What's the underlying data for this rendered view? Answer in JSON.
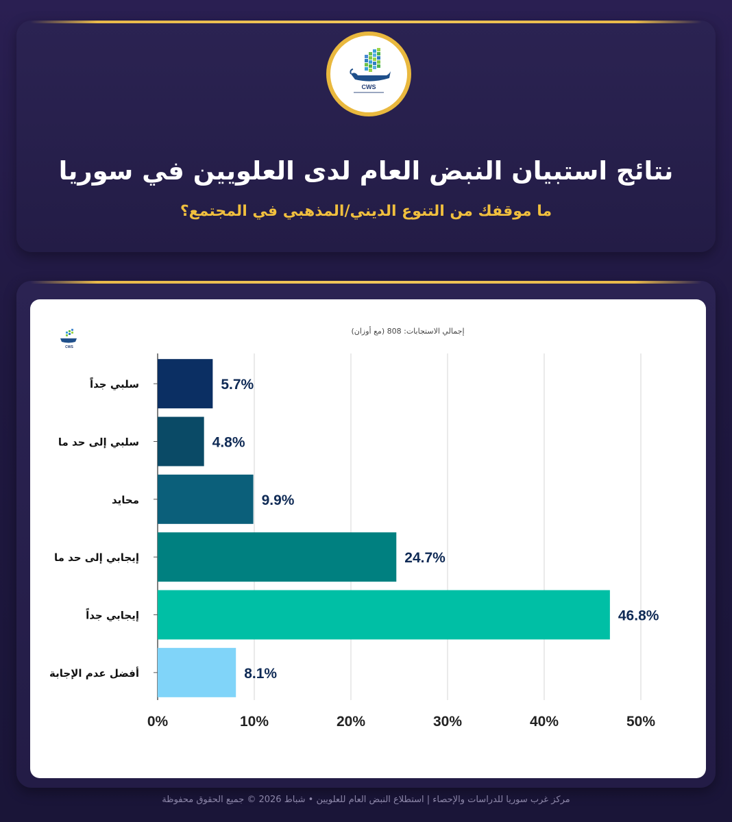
{
  "header": {
    "logo_text": "CWS",
    "title": "نتائج استبيان النبض العام لدى العلويين في سوريا",
    "subtitle": "ما موقفك من التنوع الديني/المذهبي في المجتمع؟"
  },
  "chart_header": {
    "total_note": "إجمالي الاستجابات: 808 (مع أوزان)",
    "logo_text": "CWS"
  },
  "footer": {
    "text": "مركز غرب سوريا للدراسات والإحصاء | استطلاع النبض العام للعلويين • شباط 2026 © جميع الحقوق محفوظة"
  },
  "colors": {
    "accent_gold": "#e9b83e",
    "bars": [
      "#0b2f63",
      "#0a4a66",
      "#0b5f7a",
      "#008080",
      "#00bfa5",
      "#80d4f9"
    ]
  },
  "chart_data": {
    "type": "bar",
    "orientation": "horizontal",
    "categories": [
      "سلبي جداً",
      "سلبي إلى حد ما",
      "محايد",
      "إيجابي إلى حد ما",
      "إيجابي جداً",
      "أفضل عدم الإجابة"
    ],
    "values": [
      5.7,
      4.8,
      9.9,
      24.7,
      46.8,
      8.1
    ],
    "value_labels": [
      "5.7%",
      "4.8%",
      "9.9%",
      "24.7%",
      "46.8%",
      "8.1%"
    ],
    "xlim": [
      0,
      50
    ],
    "x_ticks": [
      0,
      10,
      20,
      30,
      40,
      50
    ],
    "x_tick_labels": [
      "0%",
      "10%",
      "20%",
      "30%",
      "40%",
      "50%"
    ],
    "grid": "vertical"
  }
}
